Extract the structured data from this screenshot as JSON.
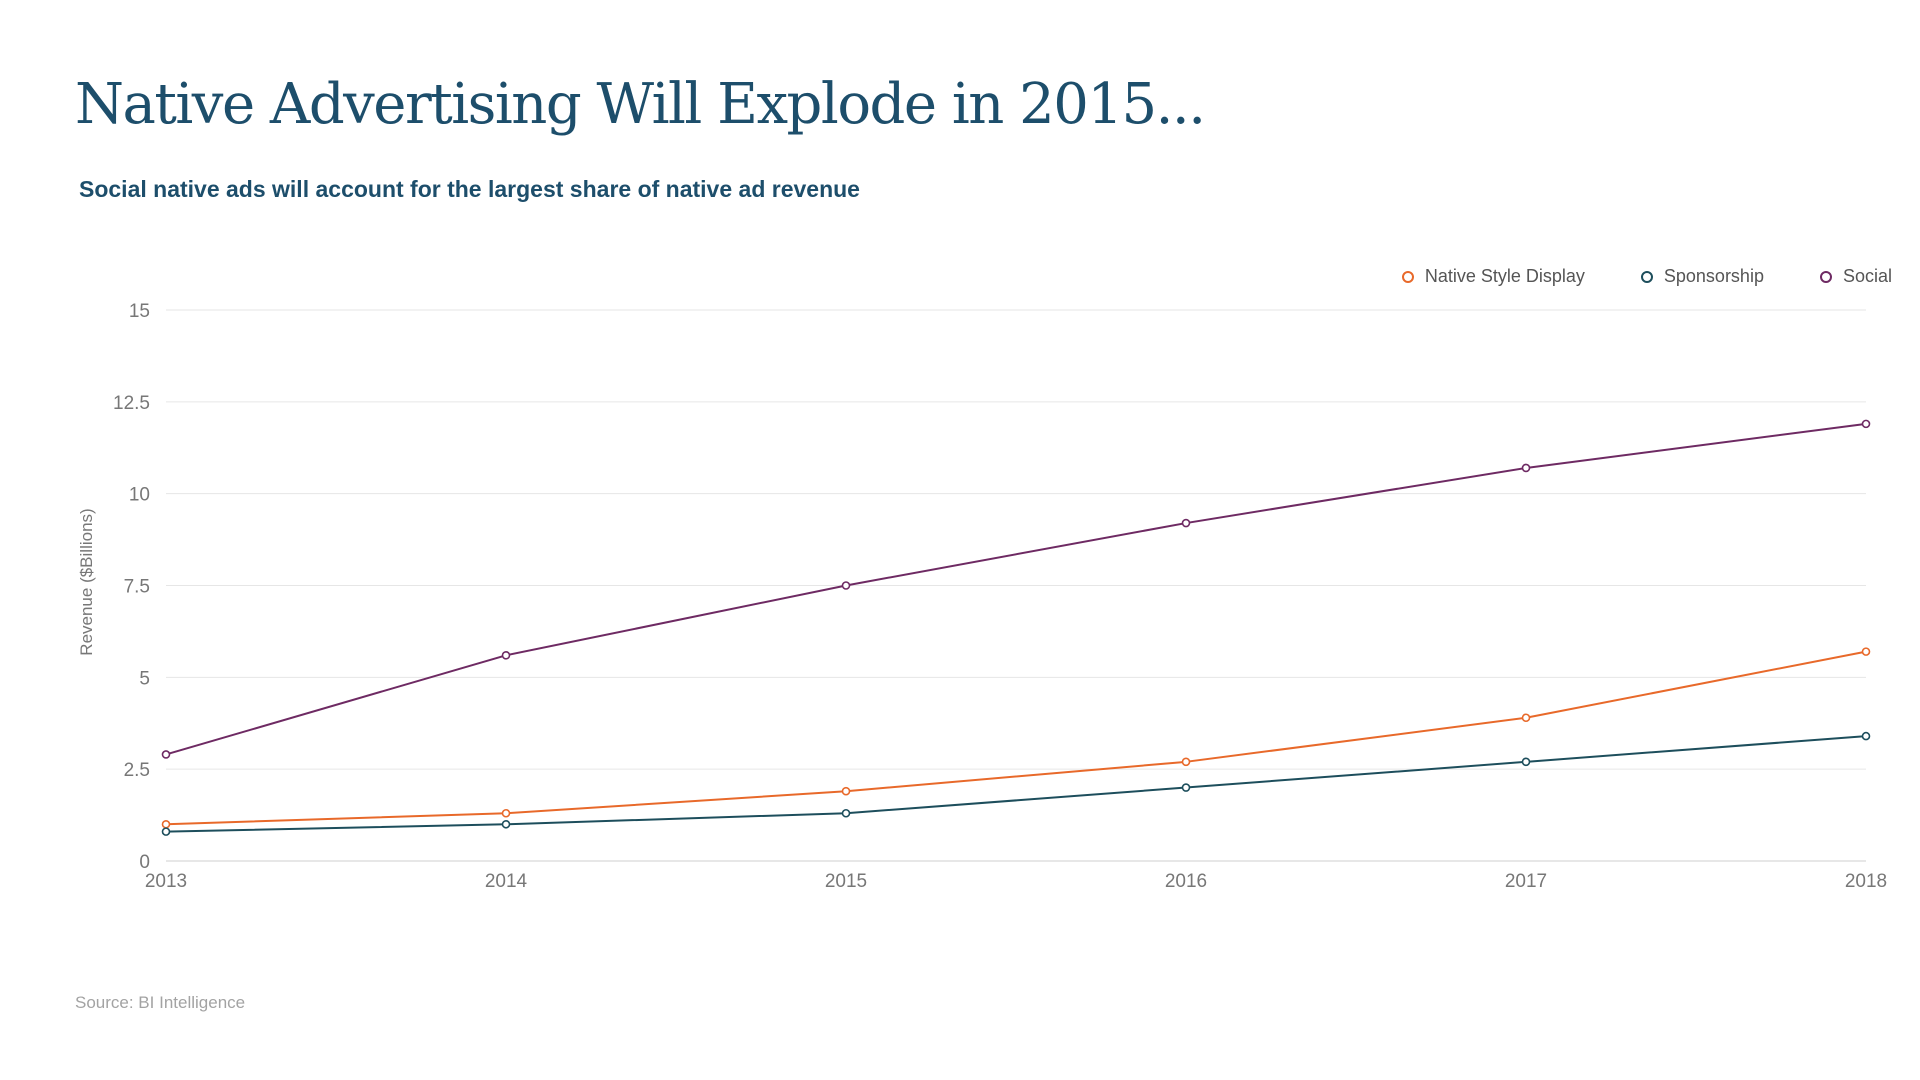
{
  "title": "Native Advertising Will Explode in 2015...",
  "subtitle": "Social native ads will account for the largest share of native ad revenue",
  "source": "Source: BI Intelligence",
  "chart_data": {
    "type": "line",
    "x": [
      "2013",
      "2014",
      "2015",
      "2016",
      "2017",
      "2018"
    ],
    "ylabel": "Revenue ($Billions)",
    "xlabel": "",
    "ylim": [
      0,
      15
    ],
    "yticks": [
      0,
      2.5,
      5,
      7.5,
      10,
      12.5,
      15
    ],
    "ytick_labels": [
      "0",
      "2.5",
      "5",
      "7.5",
      "10",
      "12.5",
      "15"
    ],
    "grid": true,
    "legend_position": "top-right",
    "series": [
      {
        "name": "Native Style Display",
        "color": "#e8692a",
        "values": [
          1.0,
          1.3,
          1.9,
          2.7,
          3.9,
          5.7
        ]
      },
      {
        "name": "Sponsorship",
        "color": "#1d4e5c",
        "values": [
          0.8,
          1.0,
          1.3,
          2.0,
          2.7,
          3.4
        ]
      },
      {
        "name": "Social",
        "color": "#6e2a63",
        "values": [
          2.9,
          5.6,
          7.5,
          9.2,
          10.7,
          11.9
        ]
      }
    ]
  }
}
